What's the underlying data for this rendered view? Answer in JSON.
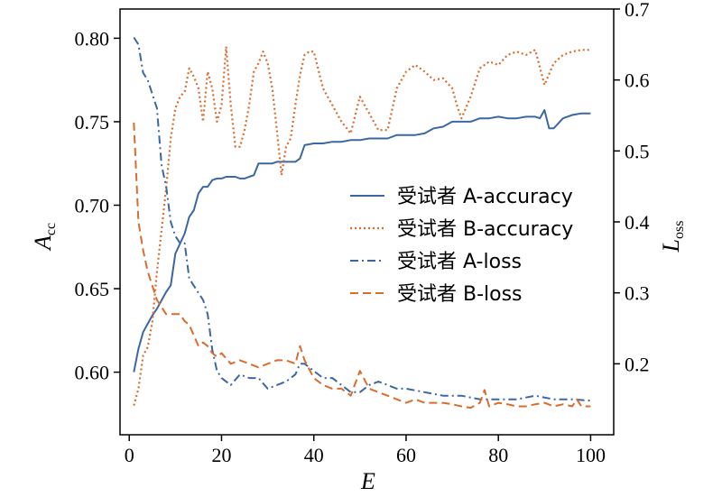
{
  "chart_data": {
    "type": "line",
    "xlabel": "E",
    "ylabel_left": {
      "main": "A",
      "sub": "cc"
    },
    "ylabel_right": {
      "main": "L",
      "sub": "oss"
    },
    "xlim": [
      -2,
      105
    ],
    "ylim_left": [
      0.5625,
      0.8175
    ],
    "ylim_right": [
      0.1,
      0.7
    ],
    "x_ticks": [
      0,
      20,
      40,
      60,
      80,
      100
    ],
    "y_ticks_left": [
      0.6,
      0.65,
      0.7,
      0.75,
      0.8
    ],
    "y_ticks_left_labels": [
      "0.60",
      "0.65",
      "0.70",
      "0.75",
      "0.80"
    ],
    "y_ticks_right": [
      0.2,
      0.3,
      0.4,
      0.5,
      0.6,
      0.7
    ],
    "y_ticks_right_labels": [
      "0.2",
      "0.3",
      "0.4",
      "0.5",
      "0.6",
      "0.7"
    ],
    "grid": false,
    "legend_position": "center-right",
    "colors": {
      "blue": "#3c67a2",
      "orange": "#d96c2f"
    },
    "series": [
      {
        "name": "受试者 A-accuracy",
        "axis": "left",
        "color": "#3c67a2",
        "style": "solid",
        "x": [
          1,
          2,
          3,
          4,
          5,
          6,
          7,
          8,
          9,
          10,
          11,
          12,
          13,
          14,
          15,
          16,
          17,
          18,
          19,
          20,
          21,
          22,
          23,
          24,
          25,
          26,
          27,
          28,
          29,
          30,
          31,
          32,
          33,
          34,
          35,
          36,
          37,
          38,
          40,
          42,
          44,
          46,
          48,
          50,
          52,
          54,
          56,
          58,
          60,
          62,
          64,
          66,
          68,
          70,
          72,
          74,
          76,
          78,
          80,
          82,
          84,
          86,
          88,
          89,
          90,
          91,
          92,
          94,
          96,
          98,
          100
        ],
        "y": [
          0.6,
          0.614,
          0.624,
          0.629,
          0.634,
          0.638,
          0.643,
          0.648,
          0.652,
          0.671,
          0.677,
          0.683,
          0.693,
          0.697,
          0.707,
          0.711,
          0.711,
          0.715,
          0.716,
          0.716,
          0.717,
          0.717,
          0.717,
          0.716,
          0.716,
          0.717,
          0.718,
          0.725,
          0.725,
          0.725,
          0.725,
          0.726,
          0.726,
          0.726,
          0.726,
          0.726,
          0.728,
          0.736,
          0.737,
          0.737,
          0.738,
          0.738,
          0.739,
          0.739,
          0.74,
          0.74,
          0.74,
          0.742,
          0.742,
          0.742,
          0.743,
          0.746,
          0.747,
          0.75,
          0.75,
          0.75,
          0.752,
          0.752,
          0.753,
          0.752,
          0.752,
          0.753,
          0.753,
          0.752,
          0.757,
          0.746,
          0.746,
          0.752,
          0.754,
          0.755,
          0.755
        ]
      },
      {
        "name": "受试者 B-accuracy",
        "axis": "left",
        "color": "#d96c2f",
        "style": "dotted",
        "x": [
          1,
          2,
          3,
          4,
          5,
          6,
          7,
          8,
          9,
          10,
          11,
          12,
          13,
          14,
          15,
          16,
          17,
          18,
          19,
          20,
          21,
          22,
          23,
          24,
          25,
          26,
          27,
          28,
          29,
          30,
          31,
          32,
          33,
          34,
          35,
          36,
          37,
          38,
          39,
          40,
          42,
          44,
          46,
          48,
          50,
          52,
          54,
          56,
          58,
          60,
          62,
          64,
          66,
          68,
          70,
          71,
          72,
          74,
          76,
          78,
          80,
          82,
          84,
          86,
          88,
          90,
          92,
          94,
          96,
          98,
          100
        ],
        "y": [
          0.58,
          0.59,
          0.61,
          0.615,
          0.63,
          0.66,
          0.685,
          0.71,
          0.74,
          0.758,
          0.765,
          0.768,
          0.782,
          0.777,
          0.77,
          0.75,
          0.78,
          0.77,
          0.75,
          0.76,
          0.795,
          0.76,
          0.735,
          0.735,
          0.745,
          0.76,
          0.78,
          0.785,
          0.792,
          0.785,
          0.77,
          0.745,
          0.718,
          0.735,
          0.74,
          0.76,
          0.778,
          0.79,
          0.792,
          0.792,
          0.77,
          0.76,
          0.75,
          0.743,
          0.765,
          0.755,
          0.745,
          0.745,
          0.77,
          0.78,
          0.784,
          0.78,
          0.775,
          0.776,
          0.77,
          0.76,
          0.752,
          0.765,
          0.782,
          0.786,
          0.784,
          0.79,
          0.792,
          0.79,
          0.793,
          0.772,
          0.785,
          0.79,
          0.792,
          0.793,
          0.793
        ]
      },
      {
        "name": "受试者 A-loss",
        "axis": "right",
        "color": "#3c67a2",
        "style": "dashdot",
        "x": [
          1,
          2,
          3,
          4,
          5,
          6,
          7,
          8,
          9,
          10,
          11,
          12,
          13,
          14,
          15,
          16,
          17,
          18,
          19,
          20,
          22,
          24,
          26,
          28,
          30,
          32,
          34,
          36,
          37,
          38,
          40,
          42,
          44,
          46,
          48,
          50,
          52,
          54,
          56,
          58,
          60,
          64,
          68,
          72,
          76,
          80,
          84,
          88,
          92,
          96,
          100
        ],
        "y": [
          0.66,
          0.65,
          0.61,
          0.6,
          0.58,
          0.56,
          0.48,
          0.45,
          0.4,
          0.38,
          0.37,
          0.37,
          0.32,
          0.31,
          0.3,
          0.29,
          0.27,
          0.22,
          0.19,
          0.18,
          0.17,
          0.185,
          0.18,
          0.18,
          0.165,
          0.17,
          0.175,
          0.185,
          0.2,
          0.2,
          0.19,
          0.18,
          0.18,
          0.17,
          0.16,
          0.16,
          0.17,
          0.175,
          0.17,
          0.165,
          0.165,
          0.16,
          0.155,
          0.155,
          0.15,
          0.15,
          0.15,
          0.155,
          0.15,
          0.15,
          0.148
        ]
      },
      {
        "name": "受试者 B-loss",
        "axis": "right",
        "color": "#d96c2f",
        "style": "dashed",
        "x": [
          1,
          2,
          3,
          4,
          5,
          6,
          7,
          8,
          9,
          10,
          11,
          12,
          13,
          14,
          15,
          16,
          17,
          18,
          19,
          20,
          22,
          24,
          26,
          28,
          30,
          32,
          34,
          36,
          37,
          38,
          40,
          42,
          44,
          46,
          48,
          50,
          52,
          54,
          56,
          58,
          60,
          62,
          64,
          66,
          68,
          70,
          72,
          74,
          76,
          77,
          78,
          80,
          82,
          84,
          86,
          88,
          90,
          92,
          94,
          96,
          97,
          98,
          100
        ],
        "y": [
          0.54,
          0.4,
          0.36,
          0.33,
          0.31,
          0.29,
          0.28,
          0.27,
          0.27,
          0.27,
          0.27,
          0.26,
          0.255,
          0.24,
          0.225,
          0.23,
          0.225,
          0.215,
          0.21,
          0.215,
          0.2,
          0.205,
          0.2,
          0.195,
          0.2,
          0.205,
          0.205,
          0.2,
          0.225,
          0.205,
          0.18,
          0.17,
          0.165,
          0.165,
          0.155,
          0.19,
          0.165,
          0.16,
          0.155,
          0.15,
          0.145,
          0.15,
          0.145,
          0.145,
          0.145,
          0.143,
          0.14,
          0.138,
          0.145,
          0.163,
          0.14,
          0.145,
          0.143,
          0.14,
          0.14,
          0.143,
          0.145,
          0.14,
          0.143,
          0.14,
          0.15,
          0.14,
          0.14
        ]
      }
    ]
  }
}
